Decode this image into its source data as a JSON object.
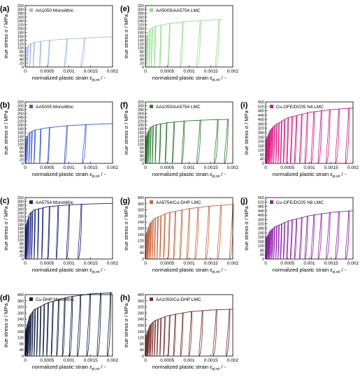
{
  "figure": {
    "ylabel": "true stress σ / MPa",
    "xlabel_main": "normalized plastic strain ",
    "xlabel_eps": "ε",
    "xlabel_sub": "pl,rel",
    "xlabel_unit": " / -"
  },
  "chart_data": [
    {
      "type": "line",
      "panel": "(a)",
      "title": "AA1050 Monolithic",
      "color": "#9fb8ee",
      "xlim": [
        0,
        0.002
      ],
      "xticks": [
        "0",
        "0.0005",
        "0.001",
        "0.0015",
        "0.002"
      ],
      "ylim": [
        0,
        320
      ],
      "yticks": [
        "0",
        "20",
        "40",
        "60",
        "80",
        "100",
        "120",
        "140",
        "160",
        "180",
        "200",
        "220",
        "240",
        "260",
        "280",
        "300",
        "320"
      ],
      "unload_x": [
        2e-05,
        6e-05,
        0.00012,
        0.0002,
        0.00035,
        0.00055,
        0.00095,
        0.00135
      ],
      "stress_envelope": [
        {
          "x": 0,
          "y": 90
        },
        {
          "x": 0.0001,
          "y": 118
        },
        {
          "x": 0.0002,
          "y": 128
        },
        {
          "x": 0.0005,
          "y": 138
        },
        {
          "x": 0.001,
          "y": 147
        },
        {
          "x": 0.0015,
          "y": 152
        },
        {
          "x": 0.002,
          "y": 157
        }
      ]
    },
    {
      "type": "line",
      "panel": "(b)",
      "title": "AA5005 Monolithic",
      "color": "#3b5bdb",
      "xlim": [
        0,
        0.002
      ],
      "xticks": [
        "0",
        "0.0005",
        "0.001",
        "0.0015",
        "0.002"
      ],
      "ylim": [
        0,
        320
      ],
      "yticks": [
        "0",
        "20",
        "40",
        "60",
        "80",
        "100",
        "120",
        "140",
        "160",
        "180",
        "200",
        "220",
        "240",
        "260",
        "280",
        "300",
        "320"
      ],
      "unload_x": [
        2e-05,
        5e-05,
        0.0001,
        0.00015,
        0.00022,
        0.00035,
        0.00055,
        0.00095,
        0.00138
      ],
      "stress_envelope": [
        {
          "x": 0,
          "y": 120
        },
        {
          "x": 0.0001,
          "y": 160
        },
        {
          "x": 0.0002,
          "y": 172
        },
        {
          "x": 0.0005,
          "y": 185
        },
        {
          "x": 0.001,
          "y": 197
        },
        {
          "x": 0.0015,
          "y": 203
        },
        {
          "x": 0.002,
          "y": 207
        }
      ]
    },
    {
      "type": "line",
      "panel": "(c)",
      "title": "AA5754 Monolithic",
      "color": "#1a237e",
      "xlim": [
        0,
        0.002
      ],
      "xticks": [
        "0",
        "0.0005",
        "0.001",
        "0.0015",
        "0.002"
      ],
      "ylim": [
        0,
        320
      ],
      "yticks": [
        "0",
        "20",
        "40",
        "60",
        "80",
        "100",
        "120",
        "140",
        "160",
        "180",
        "200",
        "220",
        "240",
        "260",
        "280",
        "300",
        "320"
      ],
      "unload_x": [
        1e-05,
        3e-05,
        5e-05,
        8e-05,
        0.00012,
        0.00016,
        0.00022,
        0.0003,
        0.0004,
        0.00055,
        0.00075,
        0.001,
        0.00128
      ],
      "stress_envelope": [
        {
          "x": 0,
          "y": 160
        },
        {
          "x": 0.0001,
          "y": 235
        },
        {
          "x": 0.0002,
          "y": 255
        },
        {
          "x": 0.0005,
          "y": 272
        },
        {
          "x": 0.001,
          "y": 282
        },
        {
          "x": 0.0015,
          "y": 287
        },
        {
          "x": 0.002,
          "y": 290
        }
      ]
    },
    {
      "type": "line",
      "panel": "(d)",
      "title": "Cu-DHP Monolithic",
      "color": "#0d1b3e",
      "xlim": [
        0,
        0.002
      ],
      "xticks": [
        "0",
        "0.0005",
        "0.001",
        "0.0015",
        "0.002"
      ],
      "ylim": [
        0,
        400
      ],
      "yticks": [
        "0",
        "40",
        "80",
        "120",
        "160",
        "200",
        "240",
        "280",
        "320",
        "360",
        "400"
      ],
      "unload_x": [
        1e-05,
        2e-05,
        3e-05,
        5e-05,
        7e-05,
        0.0001,
        0.00013,
        0.00017,
        0.00022,
        0.00028,
        0.00035,
        0.00043,
        0.00052,
        0.00063,
        0.00076,
        0.0009,
        0.00107,
        0.00126,
        0.00148,
        0.00172,
        0.00195
      ],
      "stress_envelope": [
        {
          "x": 0,
          "y": 150
        },
        {
          "x": 0.0001,
          "y": 260
        },
        {
          "x": 0.0002,
          "y": 300
        },
        {
          "x": 0.0005,
          "y": 345
        },
        {
          "x": 0.001,
          "y": 385
        },
        {
          "x": 0.0015,
          "y": 405
        },
        {
          "x": 0.002,
          "y": 412
        }
      ]
    },
    {
      "type": "line",
      "panel": "(e)",
      "title": "AA5005/AA5754 LMC",
      "color": "#8fe28a",
      "xlim": [
        0,
        0.002
      ],
      "xticks": [
        "0",
        "0.0005",
        "0.001",
        "0.0015",
        "0.002"
      ],
      "ylim": [
        0,
        320
      ],
      "yticks": [
        "0",
        "20",
        "40",
        "60",
        "80",
        "100",
        "120",
        "140",
        "160",
        "180",
        "200",
        "220",
        "240",
        "260",
        "280",
        "300",
        "320"
      ],
      "unload_x": [
        2e-05,
        5e-05,
        0.0001,
        0.00015,
        0.00022,
        0.00035,
        0.00055,
        0.00085,
        0.00125,
        0.00168
      ],
      "stress_envelope": [
        {
          "x": 0,
          "y": 140
        },
        {
          "x": 0.0001,
          "y": 195
        },
        {
          "x": 0.0002,
          "y": 210
        },
        {
          "x": 0.0005,
          "y": 225
        },
        {
          "x": 0.001,
          "y": 238
        },
        {
          "x": 0.0015,
          "y": 245
        },
        {
          "x": 0.00175,
          "y": 248
        }
      ]
    },
    {
      "type": "line",
      "panel": "(f)",
      "title": "AA1050/AA5754 LMC",
      "color": "#2e7d32",
      "xlim": [
        0,
        0.002
      ],
      "xticks": [
        "0",
        "0.0005",
        "0.001",
        "0.0015",
        "0.002"
      ],
      "ylim": [
        0,
        320
      ],
      "yticks": [
        "0",
        "20",
        "40",
        "60",
        "80",
        "100",
        "120",
        "140",
        "160",
        "180",
        "200",
        "220",
        "240",
        "260",
        "280",
        "300",
        "320"
      ],
      "unload_x": [
        1e-05,
        3e-05,
        5e-05,
        8e-05,
        0.00012,
        0.00017,
        0.00024,
        0.00034,
        0.00048,
        0.00065,
        0.00088,
        0.00125,
        0.00165,
        0.00188
      ],
      "stress_envelope": [
        {
          "x": 0,
          "y": 130
        },
        {
          "x": 0.0001,
          "y": 185
        },
        {
          "x": 0.0002,
          "y": 198
        },
        {
          "x": 0.0005,
          "y": 212
        },
        {
          "x": 0.001,
          "y": 222
        },
        {
          "x": 0.0015,
          "y": 227
        },
        {
          "x": 0.0019,
          "y": 229
        }
      ]
    },
    {
      "type": "line",
      "panel": "(g)",
      "title": "AA5754/Cu-DHP LMC",
      "color": "#c8643c",
      "xlim": [
        0,
        0.002
      ],
      "xticks": [
        "0",
        "0.0005",
        "0.001",
        "0.0015",
        "0.002"
      ],
      "ylim": [
        0,
        400
      ],
      "yticks": [
        "0",
        "40",
        "80",
        "120",
        "160",
        "200",
        "240",
        "280",
        "320",
        "360",
        "400"
      ],
      "unload_x": [
        1e-05,
        2e-05,
        3e-05,
        5e-05,
        7e-05,
        0.0001,
        0.00013,
        0.00017,
        0.00022,
        0.00028,
        0.00035,
        0.00044,
        0.00055,
        0.00068,
        0.00083,
        0.001,
        0.0012,
        0.00145,
        0.00172,
        0.002
      ],
      "stress_envelope": [
        {
          "x": 0,
          "y": 150
        },
        {
          "x": 0.0001,
          "y": 230
        },
        {
          "x": 0.0002,
          "y": 262
        },
        {
          "x": 0.0005,
          "y": 300
        },
        {
          "x": 0.001,
          "y": 328
        },
        {
          "x": 0.0015,
          "y": 345
        },
        {
          "x": 0.002,
          "y": 355
        }
      ]
    },
    {
      "type": "line",
      "panel": "(h)",
      "title": "AA1050/Cu-DHP LMC",
      "color": "#7a2e2e",
      "xlim": [
        0,
        0.002
      ],
      "xticks": [
        "0",
        "0.0005",
        "0.001",
        "0.0015",
        "0.002"
      ],
      "ylim": [
        0,
        400
      ],
      "yticks": [
        "0",
        "40",
        "80",
        "120",
        "160",
        "200",
        "240",
        "280",
        "320",
        "360",
        "400"
      ],
      "unload_x": [
        1e-05,
        2e-05,
        3e-05,
        5e-05,
        7e-05,
        0.0001,
        0.00013,
        0.00017,
        0.00022,
        0.00028,
        0.00035,
        0.00044,
        0.00055,
        0.00068,
        0.00085,
        0.00105,
        0.0013,
        0.00162,
        0.00192
      ],
      "stress_envelope": [
        {
          "x": 0,
          "y": 120
        },
        {
          "x": 0.0001,
          "y": 200
        },
        {
          "x": 0.0002,
          "y": 228
        },
        {
          "x": 0.0005,
          "y": 262
        },
        {
          "x": 0.001,
          "y": 288
        },
        {
          "x": 0.0015,
          "y": 300
        },
        {
          "x": 0.002,
          "y": 305
        }
      ]
    },
    {
      "type": "line",
      "panel": "(i)",
      "title": "Cu-OFE/DC05 N4 LMC",
      "color": "#d61a7f",
      "xlim": [
        0,
        0.002
      ],
      "xticks": [
        "0",
        "0.0005",
        "0.001",
        "0.0015",
        "0.002"
      ],
      "ylim": [
        0,
        560
      ],
      "yticks": [
        "0",
        "40",
        "80",
        "120",
        "160",
        "200",
        "240",
        "280",
        "320",
        "360",
        "400",
        "440",
        "480",
        "520",
        "560"
      ],
      "unload_x": [
        1e-05,
        2e-05,
        3e-05,
        4e-05,
        6e-05,
        8e-05,
        0.0001,
        0.00013,
        0.00016,
        0.0002,
        0.00025,
        0.0003,
        0.00036,
        0.00043,
        0.00051,
        0.0006,
        0.0007,
        0.00082,
        0.00095,
        0.0011,
        0.00127,
        0.00146,
        0.00167,
        0.0019
      ],
      "stress_envelope": [
        {
          "x": 0,
          "y": 200
        },
        {
          "x": 0.0001,
          "y": 300
        },
        {
          "x": 0.0002,
          "y": 345
        },
        {
          "x": 0.0005,
          "y": 415
        },
        {
          "x": 0.001,
          "y": 465
        },
        {
          "x": 0.0015,
          "y": 490
        },
        {
          "x": 0.002,
          "y": 505
        }
      ]
    },
    {
      "type": "line",
      "panel": "(j)",
      "title": "Cu-OFE/DC05 N8 LMC",
      "color": "#8e24aa",
      "xlim": [
        0,
        0.002
      ],
      "xticks": [
        "0",
        "0.0005",
        "0.001",
        "0.0015",
        "0.002"
      ],
      "ylim": [
        0,
        560
      ],
      "yticks": [
        "0",
        "40",
        "80",
        "120",
        "160",
        "200",
        "240",
        "280",
        "320",
        "360",
        "400",
        "440",
        "480",
        "520",
        "560"
      ],
      "unload_x": [
        1e-05,
        2e-05,
        3e-05,
        4e-05,
        6e-05,
        8e-05,
        0.0001,
        0.00013,
        0.00016,
        0.0002,
        0.00025,
        0.0003,
        0.00036,
        0.00043,
        0.00051,
        0.0006,
        0.0007,
        0.00082,
        0.00095,
        0.0011,
        0.00127,
        0.00146,
        0.00167,
        0.0019
      ],
      "stress_envelope": [
        {
          "x": 0,
          "y": 180
        },
        {
          "x": 0.0001,
          "y": 255
        },
        {
          "x": 0.0002,
          "y": 290
        },
        {
          "x": 0.0005,
          "y": 345
        },
        {
          "x": 0.001,
          "y": 395
        },
        {
          "x": 0.0015,
          "y": 425
        },
        {
          "x": 0.002,
          "y": 440
        }
      ]
    }
  ]
}
